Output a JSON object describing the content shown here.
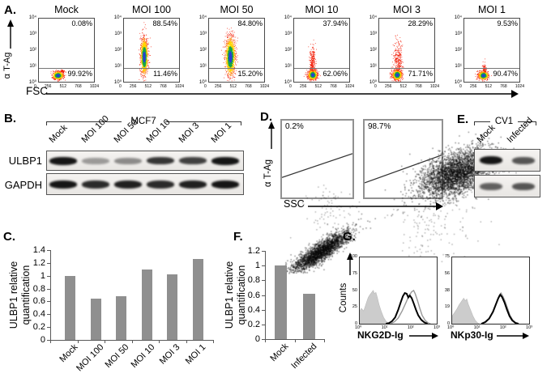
{
  "labels": {
    "A": "A.",
    "B": "B.",
    "C": "C.",
    "D": "D.",
    "E": "E.",
    "F": "F.",
    "G": "G."
  },
  "colors": {
    "bar": "#8f8f8f",
    "heat": [
      "#2a3fd4",
      "#18a54a",
      "#ffd400",
      "#ff7a00",
      "#f21800"
    ],
    "hist_fill": "#cccccc",
    "hist_gray_line": "#999999",
    "hist_black_line": "#000000"
  },
  "westerns": {
    "B": {
      "cell_line": "MCF7",
      "rows": [
        "ULBP1",
        "GAPDH"
      ],
      "lanes": [
        "Mock",
        "MOI 100",
        "MOI 50",
        "MOI 10",
        "MOI 3",
        "MOI 1"
      ],
      "ulbp1_intensities": [
        1,
        0.38,
        0.45,
        0.85,
        0.8,
        1
      ],
      "gapdh_intensities": [
        1,
        0.9,
        0.95,
        0.9,
        0.95,
        1
      ]
    },
    "E": {
      "cell_line": "CV1",
      "lanes": [
        "Mock",
        "Infected"
      ],
      "row1_intensities": [
        1,
        0.7
      ],
      "row2_intensities": [
        0.65,
        0.7
      ]
    }
  },
  "chart_data": [
    {
      "id": "A",
      "type": "scatter",
      "subtype": "flow-pseudocolor",
      "x_axis": "FSC",
      "y_axis": "α T-Ag",
      "x_tick_labels": [
        "0",
        "256",
        "512",
        "768",
        "1024"
      ],
      "y_tick_labels": [
        "10⁴",
        "10³",
        "10²",
        "10¹",
        "10⁰"
      ],
      "gate_y_frac_from_bottom": 0.218,
      "plots": [
        {
          "title": "Mock",
          "above_gate_pct": "0.08%",
          "below_gate_pct": "99.92%",
          "clusters": [
            {
              "cx": 0.34,
              "cy": 0.105,
              "sx": 0.05,
              "sy": 0.032,
              "n": 650,
              "p": "heat"
            },
            {
              "cx": 0.43,
              "cy": 0.17,
              "sx": 0.018,
              "sy": 0.014,
              "n": 35,
              "p": "red"
            }
          ]
        },
        {
          "title": "MOI 100",
          "above_gate_pct": "88.54%",
          "below_gate_pct": "11.46%",
          "clusters": [
            {
              "cx": 0.36,
              "cy": 0.4,
              "sx": 0.033,
              "sy": 0.155,
              "n": 950,
              "p": "heat"
            }
          ]
        },
        {
          "title": "MOI 50",
          "above_gate_pct": "84.80%",
          "below_gate_pct": "15.20%",
          "clusters": [
            {
              "cx": 0.38,
              "cy": 0.4,
              "sx": 0.047,
              "sy": 0.165,
              "n": 1050,
              "p": "heat"
            }
          ]
        },
        {
          "title": "MOI 10",
          "above_gate_pct": "37.94%",
          "below_gate_pct": "62.06%",
          "clusters": [
            {
              "cx": 0.33,
              "cy": 0.115,
              "sx": 0.042,
              "sy": 0.04,
              "n": 700,
              "p": "heat"
            },
            {
              "cx": 0.33,
              "cy": 0.3,
              "sx": 0.026,
              "sy": 0.125,
              "n": 270,
              "p": "red"
            }
          ]
        },
        {
          "title": "MOI 3",
          "above_gate_pct": "28.29%",
          "below_gate_pct": "71.71%",
          "clusters": [
            {
              "cx": 0.32,
              "cy": 0.115,
              "sx": 0.043,
              "sy": 0.04,
              "n": 650,
              "p": "heat"
            },
            {
              "cx": 0.34,
              "cy": 0.34,
              "sx": 0.04,
              "sy": 0.15,
              "n": 310,
              "p": "red"
            }
          ]
        },
        {
          "title": "MOI 1",
          "above_gate_pct": "9.53%",
          "below_gate_pct": "90.47%",
          "clusters": [
            {
              "cx": 0.34,
              "cy": 0.105,
              "sx": 0.047,
              "sy": 0.034,
              "n": 600,
              "p": "heat"
            },
            {
              "cx": 0.36,
              "cy": 0.2,
              "sx": 0.02,
              "sy": 0.055,
              "n": 80,
              "p": "red"
            }
          ]
        }
      ]
    },
    {
      "id": "C",
      "type": "bar",
      "ylabel_lines": [
        "ULBP1 relative",
        "quantification"
      ],
      "categories": [
        "Mock",
        "MOI 100",
        "MOI 50",
        "MOI 10",
        "MOI 3",
        "MOI 1"
      ],
      "values": [
        1.0,
        0.64,
        0.68,
        1.1,
        1.02,
        1.26
      ],
      "ylim": [
        0,
        1.4
      ],
      "yticklabels": [
        "1.4",
        "1.2",
        "1",
        "0.8",
        "0.6",
        "0.4",
        "0.2",
        "0"
      ]
    },
    {
      "id": "D",
      "type": "scatter",
      "subtype": "flow-black",
      "x_axis": "SSC",
      "y_axis": "α T-Ag",
      "plots": [
        {
          "gated_pct": "0.2%",
          "gate_line": [
            [
              0,
              0.26
            ],
            [
              1,
              0.57
            ]
          ],
          "clusters": [
            {
              "cx": 0.27,
              "cy": 0.15,
              "sx": 0.1,
              "sy": 0.034,
              "k": 0.55,
              "n": 2300,
              "a": 0.45
            },
            {
              "cx": 0.33,
              "cy": 0.41,
              "sx": 0.1,
              "sy": 0.09,
              "k": 0,
              "n": 85,
              "a": 0.3
            }
          ]
        },
        {
          "gated_pct": "98.7%",
          "gate_line": [
            [
              0,
              0.19
            ],
            [
              1,
              0.55
            ]
          ],
          "clusters": [
            {
              "cx": 0.6,
              "cy": 0.66,
              "sx": 0.125,
              "sy": 0.07,
              "k": 0.3,
              "n": 3300,
              "a": 0.45
            },
            {
              "cx": 0.47,
              "cy": 0.38,
              "sx": 0.13,
              "sy": 0.12,
              "k": 0,
              "n": 140,
              "a": 0.3
            },
            {
              "cx": 0.36,
              "cy": 0.16,
              "sx": 0.06,
              "sy": 0.05,
              "k": 0,
              "n": 28,
              "a": 0.3
            }
          ]
        }
      ]
    },
    {
      "id": "F",
      "type": "bar",
      "ylabel_lines": [
        "ULBP1 relative",
        "quantification"
      ],
      "categories": [
        "Mock",
        "Infected"
      ],
      "values": [
        1.0,
        0.62
      ],
      "ylim": [
        0,
        1.2
      ],
      "yticklabels": [
        "1.2",
        "1",
        "0.8",
        "0.6",
        "0.4",
        "0.2",
        "0"
      ]
    },
    {
      "id": "G",
      "type": "histogram",
      "ylabel": "Counts",
      "x_tick_labels": [
        "10⁰",
        "10¹",
        "10²",
        "10³"
      ],
      "plots": [
        {
          "xlabel": "NKG2D-Ig",
          "ymax": 100,
          "yticks": [
            "100",
            "75",
            "50",
            "25",
            "0"
          ],
          "series": [
            {
              "name": "filled-gray",
              "style": "fill",
              "points": [
                [
                  0,
                  20
                ],
                [
                  0.02,
                  24
                ],
                [
                  0.05,
                  20
                ],
                [
                  0.07,
                  27
                ],
                [
                  0.09,
                  34
                ],
                [
                  0.11,
                  41
                ],
                [
                  0.13,
                  45
                ],
                [
                  0.155,
                  49
                ],
                [
                  0.175,
                  52
                ],
                [
                  0.19,
                  47
                ],
                [
                  0.21,
                  49
                ],
                [
                  0.23,
                  40
                ],
                [
                  0.25,
                  30
                ],
                [
                  0.28,
                  19
                ],
                [
                  0.31,
                  10
                ],
                [
                  0.34,
                  4
                ],
                [
                  0.37,
                  1
                ],
                [
                  0.39,
                  0
                ]
              ]
            },
            {
              "name": "line-gray",
              "style": "line",
              "points": [
                [
                  0.4,
                  0
                ],
                [
                  0.45,
                  3
                ],
                [
                  0.5,
                  9
                ],
                [
                  0.55,
                  20
                ],
                [
                  0.6,
                  33
                ],
                [
                  0.64,
                  44
                ],
                [
                  0.675,
                  50
                ],
                [
                  0.7,
                  52
                ],
                [
                  0.72,
                  47
                ],
                [
                  0.75,
                  36
                ],
                [
                  0.78,
                  24
                ],
                [
                  0.81,
                  13
                ],
                [
                  0.85,
                  5
                ],
                [
                  0.89,
                  1
                ],
                [
                  0.92,
                  0
                ]
              ]
            },
            {
              "name": "line-black",
              "style": "line",
              "points": [
                [
                  0.34,
                  0
                ],
                [
                  0.38,
                  1
                ],
                [
                  0.42,
                  4
                ],
                [
                  0.46,
                  10
                ],
                [
                  0.5,
                  22
                ],
                [
                  0.53,
                  33
                ],
                [
                  0.56,
                  43
                ],
                [
                  0.585,
                  48
                ],
                [
                  0.61,
                  47
                ],
                [
                  0.63,
                  41
                ],
                [
                  0.65,
                  44
                ],
                [
                  0.675,
                  40
                ],
                [
                  0.7,
                  32
                ],
                [
                  0.73,
                  22
                ],
                [
                  0.76,
                  13
                ],
                [
                  0.8,
                  6
                ],
                [
                  0.84,
                  2
                ],
                [
                  0.88,
                  0
                ]
              ]
            }
          ]
        },
        {
          "xlabel": "NKp30-Ig",
          "ymax": 75,
          "yticks": [
            "75",
            "56",
            "38",
            "19",
            "0"
          ],
          "series": [
            {
              "name": "filled-gray",
              "style": "fill",
              "points": [
                [
                  0,
                  9
                ],
                [
                  0.03,
                  13
                ],
                [
                  0.06,
                  17
                ],
                [
                  0.09,
                  22
                ],
                [
                  0.12,
                  26
                ],
                [
                  0.15,
                  30
                ],
                [
                  0.17,
                  27
                ],
                [
                  0.19,
                  29
                ],
                [
                  0.21,
                  23
                ],
                [
                  0.24,
                  16
                ],
                [
                  0.27,
                  9
                ],
                [
                  0.3,
                  4
                ],
                [
                  0.33,
                  1
                ],
                [
                  0.35,
                  0
                ]
              ]
            },
            {
              "name": "line-gray",
              "style": "line",
              "points": [
                [
                  0.39,
                  0
                ],
                [
                  0.44,
                  2
                ],
                [
                  0.49,
                  7
                ],
                [
                  0.54,
                  16
                ],
                [
                  0.58,
                  26
                ],
                [
                  0.61,
                  33
                ],
                [
                  0.635,
                  36
                ],
                [
                  0.66,
                  32
                ],
                [
                  0.69,
                  26
                ],
                [
                  0.72,
                  18
                ],
                [
                  0.75,
                  10
                ],
                [
                  0.79,
                  4
                ],
                [
                  0.83,
                  1
                ],
                [
                  0.87,
                  0
                ]
              ]
            },
            {
              "name": "line-black",
              "style": "line",
              "points": [
                [
                  0.38,
                  0
                ],
                [
                  0.43,
                  2
                ],
                [
                  0.48,
                  6
                ],
                [
                  0.53,
                  14
                ],
                [
                  0.57,
                  23
                ],
                [
                  0.6,
                  30
                ],
                [
                  0.625,
                  34
                ],
                [
                  0.65,
                  31
                ],
                [
                  0.68,
                  25
                ],
                [
                  0.71,
                  17
                ],
                [
                  0.745,
                  9
                ],
                [
                  0.78,
                  4
                ],
                [
                  0.82,
                  1
                ],
                [
                  0.86,
                  0
                ]
              ]
            }
          ]
        }
      ]
    }
  ]
}
